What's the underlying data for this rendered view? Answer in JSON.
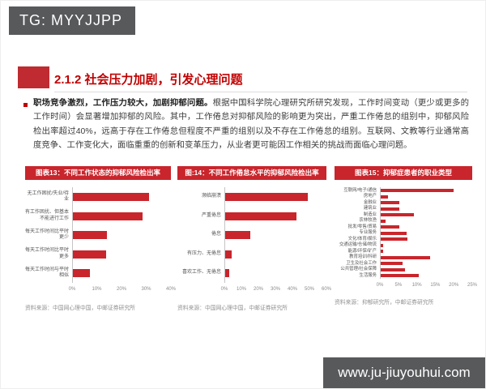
{
  "watermarks": {
    "top_left": "TG: MYYJJPP",
    "bottom_right": "www.ju-jiuyouhui.com"
  },
  "colors": {
    "accent_red": "#c9252c",
    "title_red": "#c00000",
    "badge_gray": "#58595b"
  },
  "slide": {
    "title": "2.1.2 社会压力加剧，引发心理问题",
    "paragraph_bold": "职场竞争激烈，工作压力较大，加剧抑郁问题。",
    "paragraph_rest": "根据中国科学院心理研究所研究发现，工作时间变动（更少或更多的工作时间）会显著增加抑郁的风险。其中，工作倦怠对抑郁风险的影响更为突出，严重工作倦怠的组别中，抑郁风险检出率超过40%，远高于存在工作倦怠但程度不严重的组别以及不存在工作倦怠的组别。互联网、文教等行业通常高度竞争、工作变化大，面临重重的创新和变革压力，从业者更可能因工作相关的挑战而面临心理问题。"
  },
  "chart_data": [
    {
      "type": "bar",
      "orientation": "horizontal",
      "title": "图表13：不同工作状态的抑郁风险检出率",
      "source": "资料来源：中国网心理中国，中邮证券研究所",
      "categories": [
        "无工作困扰/失业/待业",
        "有工作困扰、但基本不能进行工作",
        "每天工作时间比平时更少",
        "每天工作时间比平时更多",
        "每天工作时间与平时相似"
      ],
      "values": [
        31,
        28.5,
        14,
        13.5,
        7
      ],
      "xlim": [
        0,
        40
      ],
      "ticks": [
        "0%",
        "10%",
        "20%",
        "30%",
        "40%"
      ],
      "bar_color": "#c9252c",
      "grid": false,
      "legend": false
    },
    {
      "type": "bar",
      "orientation": "horizontal",
      "title": "图:14：不同工作倦怠水平的抑郁风险检出率",
      "source": "资料来源：中国网心理中国，中邮证券研究所",
      "categories": [
        "濒临崩溃",
        "严重倦怠",
        "倦怠",
        "有压力、无倦怠",
        "喜欢工作、无倦怠"
      ],
      "values": [
        49,
        42,
        15,
        4,
        2.5
      ],
      "xlim": [
        0,
        60
      ],
      "ticks": [
        "0%",
        "10%",
        "20%",
        "30%",
        "40%",
        "50%",
        "60%"
      ],
      "bar_color": "#c9252c",
      "grid": false,
      "legend": false
    },
    {
      "type": "bar",
      "orientation": "horizontal",
      "title": "图表15：抑郁症患者的职业类型",
      "source": "资料来源：抑郁研究所，中邮证券研究所",
      "categories": [
        "互联网/电子/通信",
        "房地产",
        "金融业",
        "建筑业",
        "制造业",
        "农林牧渔",
        "批发/零售/贸易",
        "专业服务",
        "文化/体育/娱乐",
        "交通运输/仓储/物流",
        "能源/环保/矿产",
        "教育培训/科研",
        "卫生及社会工作",
        "公共管理/社会保障",
        "生活服务"
      ],
      "values": [
        20,
        1.9,
        5,
        5,
        9,
        1.3,
        5,
        7,
        7.4,
        0.6,
        0.6,
        13.5,
        6,
        6.7,
        10.4
      ],
      "xlim": [
        0,
        25
      ],
      "ticks": [
        "0%",
        "5%",
        "10%",
        "15%",
        "20%",
        "25%"
      ],
      "bar_color": "#c9252c",
      "grid": false,
      "legend": false
    }
  ]
}
